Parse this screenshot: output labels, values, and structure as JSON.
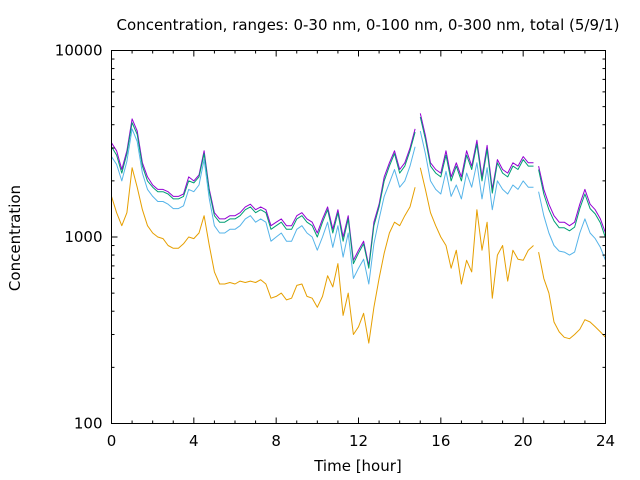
{
  "chart_data": {
    "type": "line",
    "title": "Concentration, ranges: 0-30 nm, 0-100 nm, 0-300 nm, total (5/9/1)",
    "xlabel": "Time [hour]",
    "ylabel": "Concentration",
    "xlim": [
      0,
      24
    ],
    "ylim": [
      100,
      10000
    ],
    "yscale": "log",
    "xticks": [
      "0",
      "4",
      "8",
      "12",
      "16",
      "20",
      "24"
    ],
    "yticks": [
      "100",
      "1000",
      "10000"
    ],
    "grid": false,
    "x": [
      0,
      0.25,
      0.5,
      0.75,
      1,
      1.25,
      1.5,
      1.75,
      2,
      2.25,
      2.5,
      2.75,
      3,
      3.25,
      3.5,
      3.75,
      4,
      4.25,
      4.5,
      4.75,
      5,
      5.25,
      5.5,
      5.75,
      6,
      6.25,
      6.5,
      6.75,
      7,
      7.25,
      7.5,
      7.75,
      8,
      8.25,
      8.5,
      8.75,
      9,
      9.25,
      9.5,
      9.75,
      10,
      10.25,
      10.5,
      10.75,
      11,
      11.25,
      11.5,
      11.75,
      12,
      12.25,
      12.5,
      12.75,
      13,
      13.25,
      13.5,
      13.75,
      14,
      14.25,
      14.5,
      14.75,
      15,
      15.25,
      15.5,
      15.75,
      16,
      16.25,
      16.5,
      16.75,
      17,
      17.25,
      17.5,
      17.75,
      18,
      18.25,
      18.5,
      18.75,
      19,
      19.25,
      19.5,
      19.75,
      20,
      20.25,
      20.5,
      20.75,
      21,
      21.25,
      21.5,
      21.75,
      22,
      22.25,
      22.5,
      22.75,
      23,
      23.25,
      23.5,
      23.75,
      24
    ],
    "series": [
      {
        "color": "#9400d3",
        "values": [
          3200,
          2900,
          2300,
          2900,
          4300,
          3700,
          2500,
          2100,
          1900,
          1800,
          1800,
          1750,
          1650,
          1650,
          1700,
          2100,
          2000,
          2150,
          2900,
          1800,
          1350,
          1250,
          1250,
          1300,
          1300,
          1350,
          1450,
          1500,
          1400,
          1450,
          1400,
          1150,
          1200,
          1250,
          1150,
          1150,
          1300,
          1350,
          1250,
          1200,
          1050,
          1250,
          1450,
          1100,
          1400,
          1000,
          1300,
          750,
          850,
          950,
          700,
          1200,
          1500,
          2100,
          2500,
          2900,
          2300,
          2500,
          3000,
          3800,
          4600,
          3500,
          2500,
          2300,
          2200,
          2900,
          2100,
          2500,
          2100,
          2900,
          2400,
          3300,
          2100,
          3100,
          1800,
          2600,
          2300,
          2200,
          2500,
          2400,
          2700,
          2500,
          2500,
          2400,
          1800,
          1500,
          1300,
          1200,
          1200,
          1150,
          1200,
          1500,
          1800,
          1500,
          1400,
          1250,
          1050
        ],
        "gaps_after_x": [
          14.75,
          20.5
        ]
      },
      {
        "color": "#009e73",
        "values": [
          3050,
          2750,
          2200,
          2800,
          4100,
          3550,
          2400,
          2000,
          1850,
          1750,
          1750,
          1700,
          1600,
          1600,
          1650,
          2000,
          1950,
          2100,
          2800,
          1750,
          1300,
          1200,
          1200,
          1250,
          1250,
          1300,
          1400,
          1450,
          1350,
          1400,
          1350,
          1100,
          1150,
          1200,
          1100,
          1100,
          1250,
          1300,
          1200,
          1150,
          1000,
          1200,
          1400,
          1050,
          1350,
          950,
          1250,
          720,
          820,
          920,
          680,
          1150,
          1450,
          2000,
          2400,
          2800,
          2200,
          2400,
          2900,
          3650,
          4400,
          3350,
          2400,
          2200,
          2100,
          2750,
          2000,
          2400,
          2000,
          2750,
          2300,
          3150,
          2000,
          2950,
          1720,
          2500,
          2200,
          2100,
          2400,
          2300,
          2600,
          2400,
          2400,
          2300,
          1700,
          1400,
          1220,
          1120,
          1120,
          1080,
          1130,
          1420,
          1700,
          1420,
          1330,
          1190,
          990
        ],
        "gaps_after_x": [
          14.75,
          20.5
        ]
      },
      {
        "color": "#56b4e9",
        "values": [
          2700,
          2450,
          2000,
          2550,
          3800,
          3250,
          2200,
          1800,
          1650,
          1550,
          1550,
          1500,
          1420,
          1420,
          1470,
          1800,
          1750,
          1900,
          2600,
          1600,
          1150,
          1050,
          1050,
          1100,
          1100,
          1150,
          1250,
          1300,
          1200,
          1250,
          1200,
          950,
          1000,
          1050,
          950,
          950,
          1100,
          1150,
          1050,
          1000,
          850,
          1000,
          1200,
          880,
          1150,
          780,
          1050,
          600,
          680,
          760,
          560,
          920,
          1250,
          1650,
          1950,
          2300,
          1850,
          2000,
          2400,
          3050,
          3700,
          2800,
          2000,
          1800,
          1700,
          2250,
          1650,
          1900,
          1600,
          2200,
          1850,
          2500,
          1600,
          2350,
          1400,
          2000,
          1800,
          1700,
          1900,
          1800,
          2000,
          1850,
          1850,
          1750,
          1300,
          1050,
          900,
          840,
          830,
          800,
          830,
          1050,
          1250,
          1050,
          980,
          880,
          750
        ],
        "gaps_after_x": [
          14.75,
          20.5
        ]
      },
      {
        "color": "#e69f00",
        "values": [
          1650,
          1350,
          1150,
          1350,
          2350,
          1850,
          1400,
          1150,
          1050,
          1000,
          980,
          900,
          870,
          870,
          920,
          1000,
          980,
          1050,
          1300,
          900,
          650,
          560,
          560,
          570,
          560,
          580,
          570,
          580,
          570,
          590,
          560,
          470,
          480,
          500,
          460,
          470,
          550,
          560,
          480,
          470,
          420,
          480,
          620,
          540,
          720,
          380,
          500,
          300,
          330,
          390,
          270,
          420,
          600,
          820,
          1050,
          1200,
          1150,
          1300,
          1450,
          1850,
          2350,
          1800,
          1350,
          1150,
          1000,
          900,
          680,
          850,
          560,
          750,
          650,
          1400,
          850,
          1200,
          470,
          800,
          900,
          580,
          850,
          760,
          750,
          850,
          900,
          830,
          600,
          500,
          350,
          310,
          290,
          285,
          300,
          320,
          360,
          350,
          330,
          310,
          290
        ],
        "gaps_after_x": [
          14.75,
          20.5
        ]
      }
    ]
  }
}
